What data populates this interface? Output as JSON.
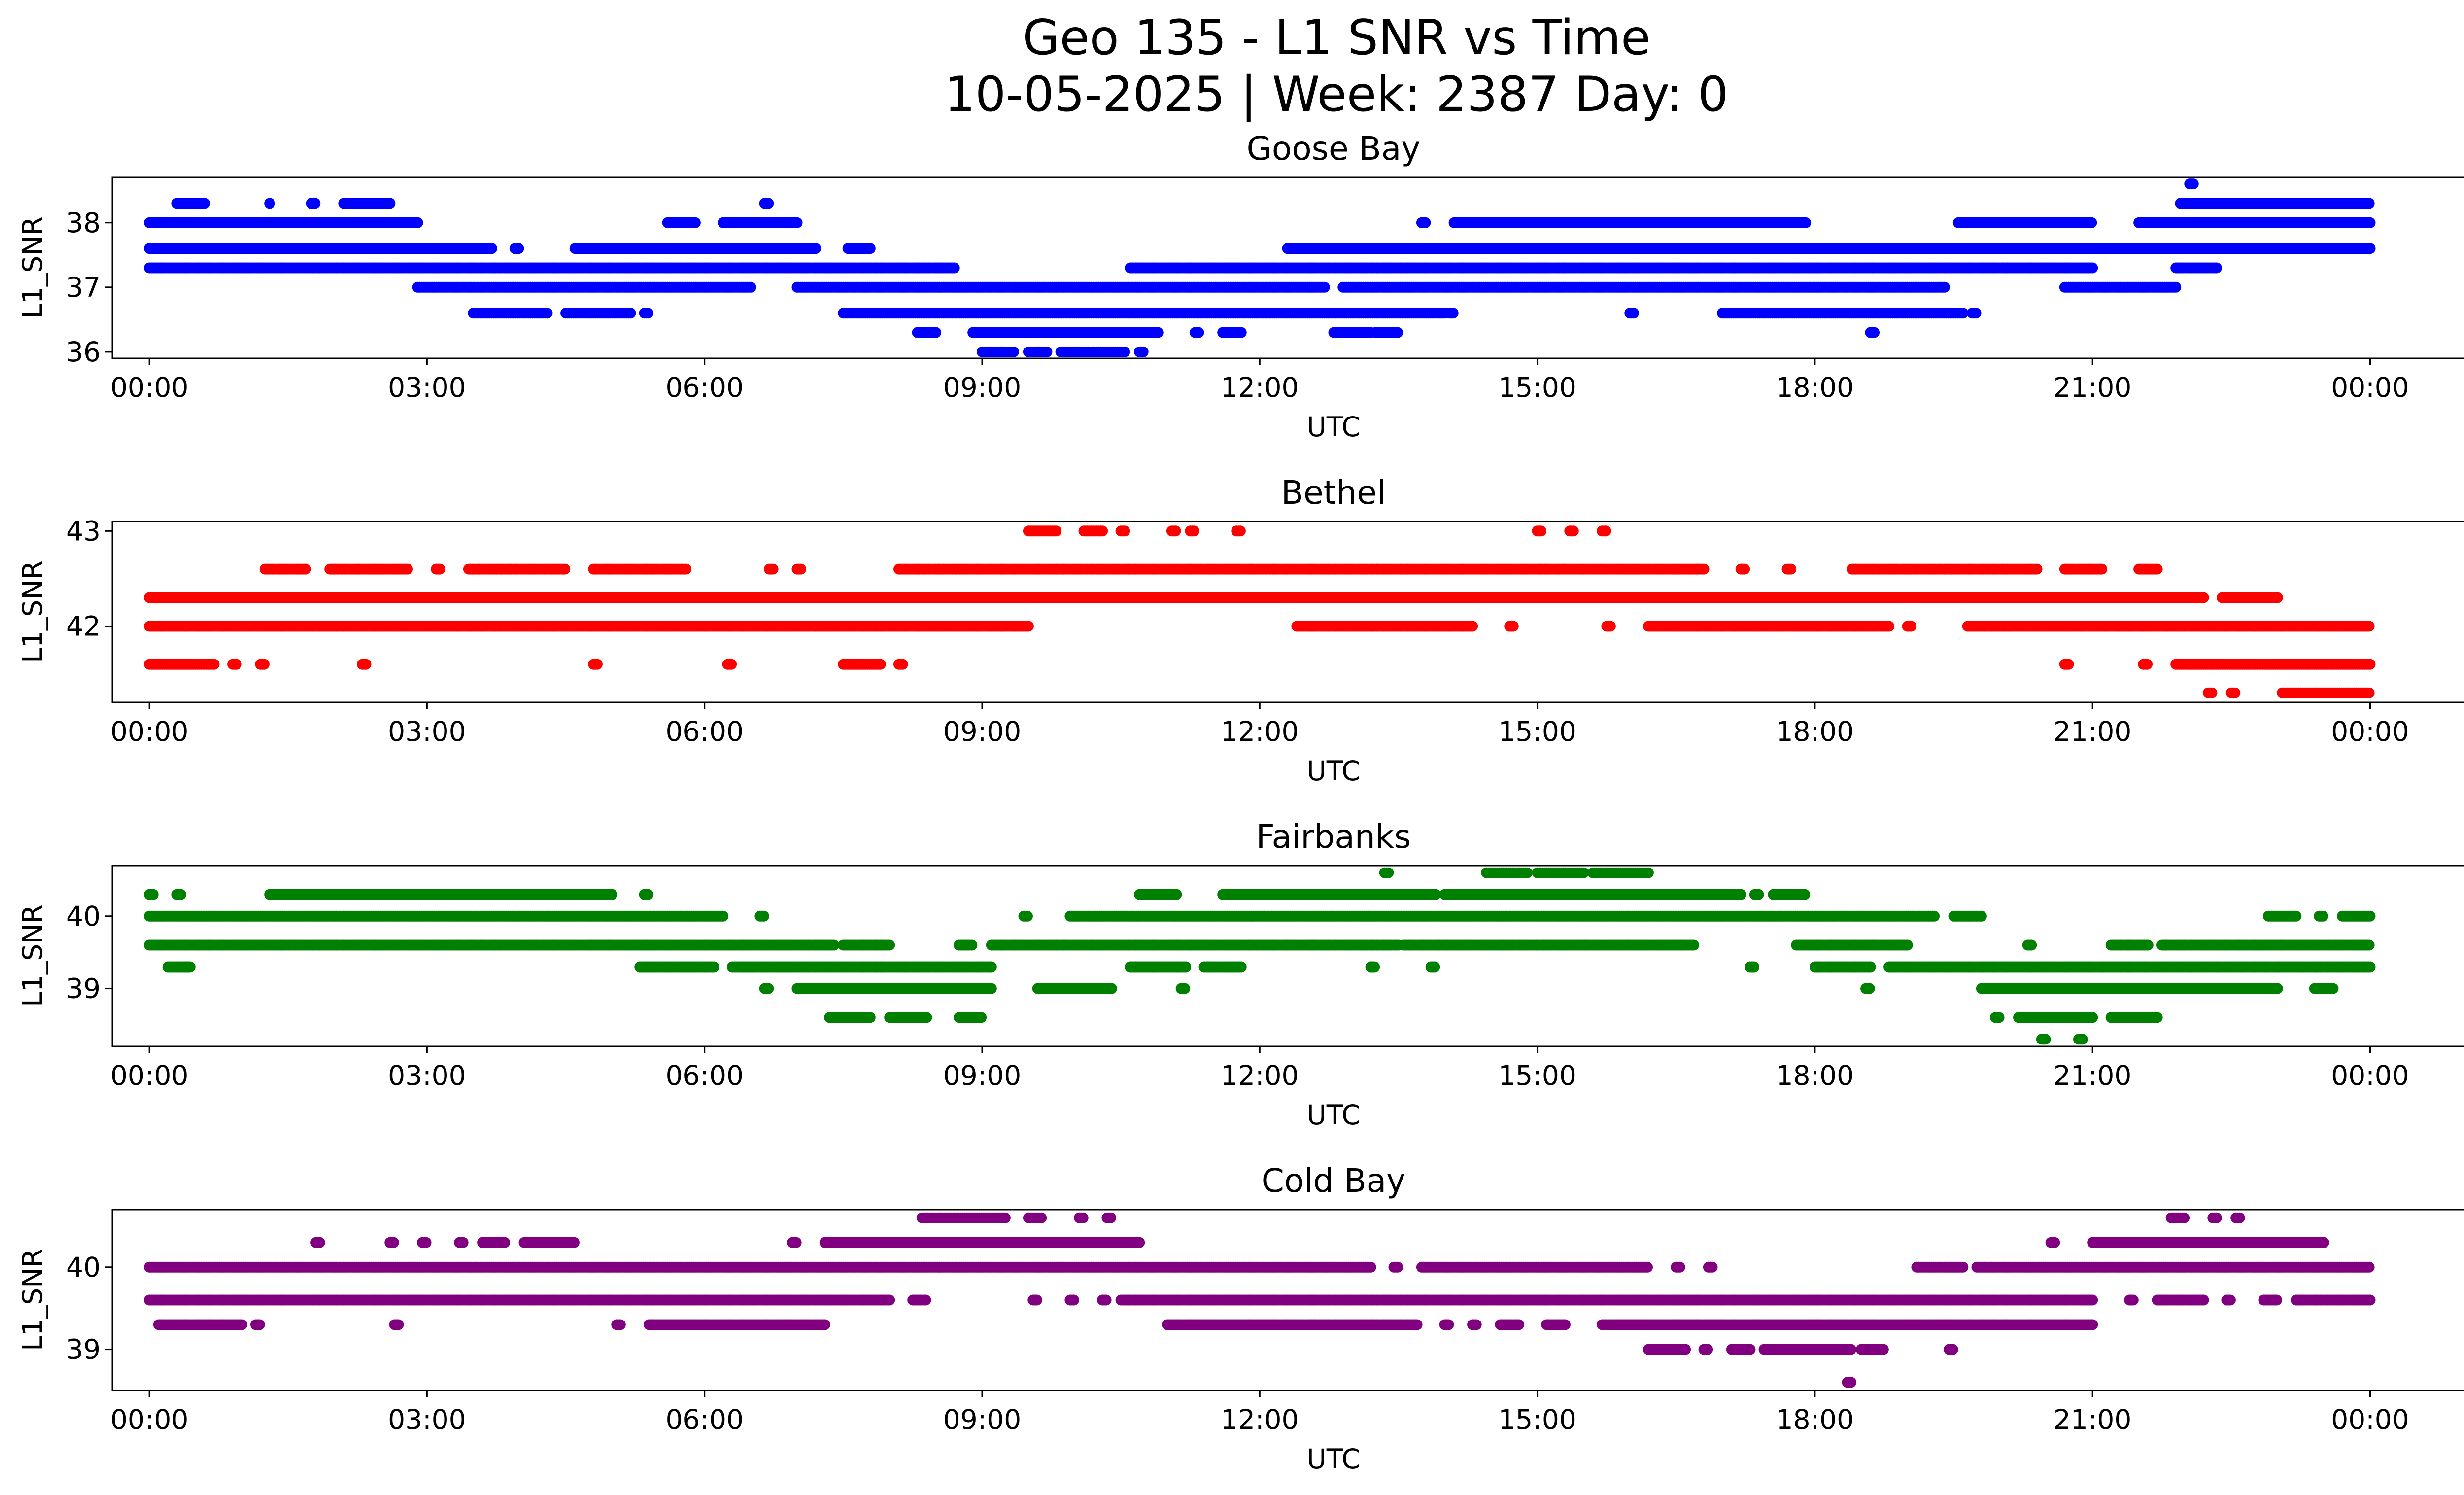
{
  "title_line1": "Geo 135 - L1 SNR vs Time",
  "title_line2": "10-05-2025 | Week: 2387 Day: 0",
  "chart_data": [
    {
      "type": "scatter",
      "title": "Goose Bay",
      "xlabel": "UTC",
      "ylabel": "L1_SNR",
      "color": "#0000ff",
      "x_unit": "hours",
      "xlim": [
        -0.4,
        26.0
      ],
      "ylim": [
        35.9,
        38.7
      ],
      "x_ticks": [
        0,
        3,
        6,
        9,
        12,
        15,
        18,
        21,
        24
      ],
      "x_tick_labels": [
        "00:00",
        "03:00",
        "06:00",
        "09:00",
        "12:00",
        "15:00",
        "18:00",
        "21:00",
        "00:00"
      ],
      "y_ticks": [
        36,
        37,
        38
      ],
      "y_tick_labels": [
        "36",
        "37",
        "38"
      ],
      "levels": [
        {
          "y": 38.6,
          "ranges": [
            [
              22.05,
              22.1
            ]
          ]
        },
        {
          "y": 38.3,
          "ranges": [
            [
              0.3,
              0.6
            ],
            [
              1.3,
              1.3
            ],
            [
              1.75,
              1.8
            ],
            [
              2.1,
              2.6
            ],
            [
              6.65,
              6.7
            ],
            [
              21.95,
              24.0
            ]
          ]
        },
        {
          "y": 38.0,
          "ranges": [
            [
              0.0,
              2.9
            ],
            [
              5.6,
              5.9
            ],
            [
              6.2,
              7.0
            ],
            [
              13.75,
              13.8
            ],
            [
              14.1,
              17.9
            ],
            [
              19.55,
              21.0
            ],
            [
              21.5,
              24.0
            ]
          ]
        },
        {
          "y": 37.6,
          "ranges": [
            [
              0.0,
              3.7
            ],
            [
              3.95,
              4.0
            ],
            [
              4.6,
              7.2
            ],
            [
              7.55,
              7.8
            ],
            [
              12.3,
              24.0
            ]
          ]
        },
        {
          "y": 37.3,
          "ranges": [
            [
              0.0,
              8.7
            ],
            [
              10.6,
              21.0
            ],
            [
              21.9,
              22.35
            ]
          ]
        },
        {
          "y": 37.0,
          "ranges": [
            [
              2.9,
              6.5
            ],
            [
              7.0,
              12.7
            ],
            [
              12.9,
              19.4
            ],
            [
              20.7,
              21.9
            ]
          ]
        },
        {
          "y": 36.6,
          "ranges": [
            [
              3.5,
              4.3
            ],
            [
              4.5,
              5.2
            ],
            [
              5.35,
              5.4
            ],
            [
              7.5,
              14.0
            ],
            [
              14.05,
              14.1
            ],
            [
              16.0,
              16.05
            ],
            [
              17.0,
              19.6
            ],
            [
              19.7,
              19.75
            ]
          ]
        },
        {
          "y": 36.3,
          "ranges": [
            [
              8.3,
              8.5
            ],
            [
              8.9,
              10.9
            ],
            [
              11.3,
              11.35
            ],
            [
              11.6,
              11.8
            ],
            [
              12.8,
              13.2
            ],
            [
              13.25,
              13.5
            ],
            [
              18.6,
              18.65
            ]
          ]
        },
        {
          "y": 36.0,
          "ranges": [
            [
              9.0,
              9.35
            ],
            [
              9.5,
              9.7
            ],
            [
              9.85,
              10.15
            ],
            [
              10.2,
              10.3
            ],
            [
              10.3,
              10.55
            ],
            [
              10.7,
              10.75
            ]
          ]
        }
      ]
    },
    {
      "type": "scatter",
      "title": "Bethel",
      "xlabel": "UTC",
      "ylabel": "L1_SNR",
      "color": "#ff0000",
      "x_unit": "hours",
      "xlim": [
        -0.4,
        26.0
      ],
      "ylim": [
        41.2,
        43.1
      ],
      "x_ticks": [
        0,
        3,
        6,
        9,
        12,
        15,
        18,
        21,
        24
      ],
      "x_tick_labels": [
        "00:00",
        "03:00",
        "06:00",
        "09:00",
        "12:00",
        "15:00",
        "18:00",
        "21:00",
        "00:00"
      ],
      "y_ticks": [
        42,
        43
      ],
      "y_tick_labels": [
        "42",
        "43"
      ],
      "levels": [
        {
          "y": 43.0,
          "ranges": [
            [
              9.5,
              9.8
            ],
            [
              10.1,
              10.3
            ],
            [
              10.5,
              10.55
            ],
            [
              11.05,
              11.1
            ],
            [
              11.25,
              11.3
            ],
            [
              11.75,
              11.8
            ],
            [
              15.0,
              15.05
            ],
            [
              15.35,
              15.4
            ],
            [
              15.7,
              15.75
            ]
          ]
        },
        {
          "y": 42.6,
          "ranges": [
            [
              1.25,
              1.7
            ],
            [
              1.95,
              2.8
            ],
            [
              3.1,
              3.15
            ],
            [
              3.45,
              4.5
            ],
            [
              4.8,
              5.8
            ],
            [
              6.7,
              6.75
            ],
            [
              7.0,
              7.05
            ],
            [
              8.1,
              16.8
            ],
            [
              17.2,
              17.25
            ],
            [
              17.7,
              17.75
            ],
            [
              18.4,
              20.4
            ],
            [
              20.7,
              21.1
            ],
            [
              21.5,
              21.7
            ]
          ]
        },
        {
          "y": 42.3,
          "ranges": [
            [
              0.0,
              22.2
            ],
            [
              22.4,
              23.0
            ]
          ]
        },
        {
          "y": 42.0,
          "ranges": [
            [
              0.0,
              9.5
            ],
            [
              12.4,
              14.3
            ],
            [
              14.7,
              14.75
            ],
            [
              15.75,
              15.8
            ],
            [
              16.2,
              18.8
            ],
            [
              19.0,
              19.05
            ],
            [
              19.65,
              24.0
            ]
          ]
        },
        {
          "y": 41.6,
          "ranges": [
            [
              0.0,
              0.7
            ],
            [
              0.9,
              0.95
            ],
            [
              1.2,
              1.25
            ],
            [
              2.3,
              2.35
            ],
            [
              4.8,
              4.85
            ],
            [
              6.25,
              6.3
            ],
            [
              7.5,
              7.9
            ],
            [
              8.1,
              8.15
            ],
            [
              20.7,
              20.75
            ],
            [
              21.55,
              21.6
            ],
            [
              21.9,
              24.0
            ]
          ]
        },
        {
          "y": 41.3,
          "ranges": [
            [
              22.25,
              22.3
            ],
            [
              22.5,
              22.55
            ],
            [
              23.05,
              24.0
            ]
          ]
        }
      ]
    },
    {
      "type": "scatter",
      "title": "Fairbanks",
      "xlabel": "UTC",
      "ylabel": "L1_SNR",
      "color": "#008000",
      "x_unit": "hours",
      "xlim": [
        -0.4,
        26.0
      ],
      "ylim": [
        38.2,
        40.7
      ],
      "x_ticks": [
        0,
        3,
        6,
        9,
        12,
        15,
        18,
        21,
        24
      ],
      "x_tick_labels": [
        "00:00",
        "03:00",
        "06:00",
        "09:00",
        "12:00",
        "15:00",
        "18:00",
        "21:00",
        "00:00"
      ],
      "y_ticks": [
        39,
        40
      ],
      "y_tick_labels": [
        "39",
        "40"
      ],
      "levels": [
        {
          "y": 40.6,
          "ranges": [
            [
              13.35,
              13.4
            ],
            [
              14.45,
              14.9
            ],
            [
              15.0,
              15.5
            ],
            [
              15.6,
              16.2
            ]
          ]
        },
        {
          "y": 40.3,
          "ranges": [
            [
              0.0,
              0.05
            ],
            [
              0.3,
              0.35
            ],
            [
              1.3,
              2.3
            ],
            [
              2.3,
              5.0
            ],
            [
              5.35,
              5.4
            ],
            [
              10.7,
              11.1
            ],
            [
              11.6,
              13.9
            ],
            [
              14.0,
              17.2
            ],
            [
              17.35,
              17.4
            ],
            [
              17.55,
              17.9
            ]
          ]
        },
        {
          "y": 40.0,
          "ranges": [
            [
              0.0,
              6.2
            ],
            [
              6.6,
              6.65
            ],
            [
              9.45,
              9.5
            ],
            [
              9.95,
              19.3
            ],
            [
              19.5,
              19.8
            ],
            [
              22.9,
              23.2
            ],
            [
              23.45,
              23.5
            ],
            [
              23.7,
              24.0
            ]
          ]
        },
        {
          "y": 39.6,
          "ranges": [
            [
              0.0,
              7.4
            ],
            [
              7.5,
              8.0
            ],
            [
              8.75,
              8.9
            ],
            [
              9.1,
              13.5
            ],
            [
              13.55,
              16.7
            ],
            [
              17.8,
              19.0
            ],
            [
              20.3,
              20.35
            ],
            [
              21.2,
              21.6
            ],
            [
              21.75,
              24.0
            ]
          ]
        },
        {
          "y": 39.3,
          "ranges": [
            [
              0.2,
              0.45
            ],
            [
              5.3,
              6.1
            ],
            [
              6.3,
              9.1
            ],
            [
              10.6,
              11.2
            ],
            [
              11.4,
              11.8
            ],
            [
              13.2,
              13.25
            ],
            [
              13.85,
              13.9
            ],
            [
              17.3,
              17.35
            ],
            [
              18.0,
              18.6
            ],
            [
              18.8,
              24.0
            ]
          ]
        },
        {
          "y": 39.0,
          "ranges": [
            [
              6.65,
              6.7
            ],
            [
              7.0,
              9.1
            ],
            [
              9.6,
              10.4
            ],
            [
              11.15,
              11.2
            ],
            [
              18.55,
              18.6
            ],
            [
              19.8,
              23.0
            ],
            [
              23.4,
              23.6
            ]
          ]
        },
        {
          "y": 38.6,
          "ranges": [
            [
              7.35,
              7.8
            ],
            [
              8.0,
              8.4
            ],
            [
              8.75,
              9.0
            ],
            [
              19.95,
              20.0
            ],
            [
              20.2,
              21.0
            ],
            [
              21.2,
              21.7
            ]
          ]
        },
        {
          "y": 38.3,
          "ranges": [
            [
              20.45,
              20.5
            ],
            [
              20.85,
              20.9
            ]
          ]
        }
      ]
    },
    {
      "type": "scatter",
      "title": "Cold Bay",
      "xlabel": "UTC",
      "ylabel": "L1_SNR",
      "color": "#800080",
      "x_unit": "hours",
      "xlim": [
        -0.4,
        26.0
      ],
      "ylim": [
        38.5,
        40.7
      ],
      "x_ticks": [
        0,
        3,
        6,
        9,
        12,
        15,
        18,
        21,
        24
      ],
      "x_tick_labels": [
        "00:00",
        "03:00",
        "06:00",
        "09:00",
        "12:00",
        "15:00",
        "18:00",
        "21:00",
        "00:00"
      ],
      "y_ticks": [
        39,
        40
      ],
      "y_tick_labels": [
        "39",
        "40"
      ],
      "levels": [
        {
          "y": 40.6,
          "ranges": [
            [
              8.35,
              9.25
            ],
            [
              9.5,
              9.65
            ],
            [
              10.05,
              10.1
            ],
            [
              10.35,
              10.4
            ],
            [
              21.85,
              22.0
            ],
            [
              22.3,
              22.35
            ],
            [
              22.55,
              22.6
            ]
          ]
        },
        {
          "y": 40.3,
          "ranges": [
            [
              1.8,
              1.85
            ],
            [
              2.6,
              2.65
            ],
            [
              2.95,
              3.0
            ],
            [
              3.35,
              3.4
            ],
            [
              3.6,
              3.85
            ],
            [
              4.05,
              4.6
            ],
            [
              6.95,
              7.0
            ],
            [
              7.3,
              10.7
            ],
            [
              20.55,
              20.6
            ],
            [
              21.0,
              23.5
            ]
          ]
        },
        {
          "y": 40.0,
          "ranges": [
            [
              0.0,
              13.2
            ],
            [
              13.45,
              13.5
            ],
            [
              13.75,
              16.2
            ],
            [
              16.5,
              16.55
            ],
            [
              16.85,
              16.9
            ],
            [
              19.1,
              19.6
            ],
            [
              19.75,
              24.0
            ]
          ]
        },
        {
          "y": 39.6,
          "ranges": [
            [
              0.0,
              8.0
            ],
            [
              8.25,
              8.4
            ],
            [
              9.55,
              9.6
            ],
            [
              9.95,
              10.0
            ],
            [
              10.3,
              10.35
            ],
            [
              10.5,
              21.0
            ],
            [
              21.4,
              21.45
            ],
            [
              21.7,
              22.2
            ],
            [
              22.45,
              22.5
            ],
            [
              22.85,
              23.0
            ],
            [
              23.2,
              24.0
            ]
          ]
        },
        {
          "y": 39.3,
          "ranges": [
            [
              0.1,
              1.0
            ],
            [
              1.15,
              1.2
            ],
            [
              2.65,
              2.7
            ],
            [
              5.05,
              5.1
            ],
            [
              5.4,
              7.3
            ],
            [
              11.0,
              13.7
            ],
            [
              14.0,
              14.05
            ],
            [
              14.3,
              14.35
            ],
            [
              14.6,
              14.8
            ],
            [
              15.1,
              15.3
            ],
            [
              15.7,
              21.0
            ]
          ]
        },
        {
          "y": 39.0,
          "ranges": [
            [
              16.2,
              16.6
            ],
            [
              16.8,
              16.85
            ],
            [
              17.1,
              17.3
            ],
            [
              17.45,
              18.4
            ],
            [
              18.5,
              18.75
            ],
            [
              19.45,
              19.5
            ]
          ]
        },
        {
          "y": 38.6,
          "ranges": [
            [
              18.35,
              18.4
            ]
          ]
        }
      ]
    }
  ]
}
